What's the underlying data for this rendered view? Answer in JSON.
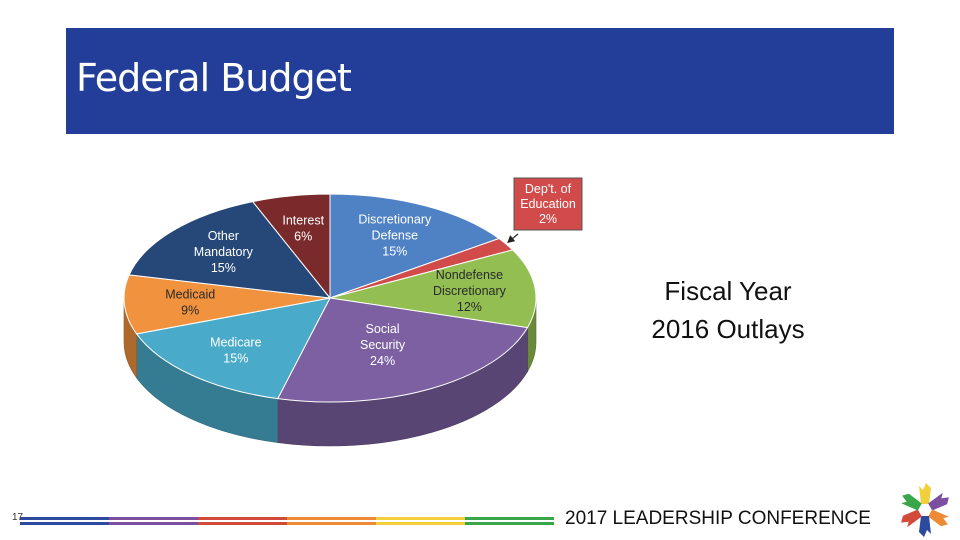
{
  "header": {
    "title": "Federal Budget"
  },
  "side_title": {
    "line1": "Fiscal Year",
    "line2": "2016 Outlays"
  },
  "footer": {
    "slide_number": "17",
    "conference": "2017 LEADERSHIP CONFERENCE",
    "stripe_colors": [
      "#2c4a9e",
      "#7b4ea0",
      "#d24a3a",
      "#ee8a33",
      "#f3cf3b",
      "#3aa64a"
    ]
  },
  "chart_data": {
    "type": "pie",
    "three_d": true,
    "title": "",
    "slices": [
      {
        "label": "Discretionary Defense",
        "value": 15,
        "value_label": "15%",
        "color": "#4f81c5"
      },
      {
        "label": "Dep't. of Education",
        "value": 2,
        "value_label": "2%",
        "color": "#d24b4b",
        "callout": true
      },
      {
        "label": "Nondefense Discretionary",
        "value": 12,
        "value_label": "12%",
        "color": "#93be52"
      },
      {
        "label": "Social Security",
        "value": 24,
        "value_label": "24%",
        "color": "#7c60a1"
      },
      {
        "label": "Medicare",
        "value": 15,
        "value_label": "15%",
        "color": "#49abc9"
      },
      {
        "label": "Medicaid",
        "value": 9,
        "value_label": "9%",
        "color": "#f1923e"
      },
      {
        "label": "Other Mandatory",
        "value": 15,
        "value_label": "15%",
        "color": "#254878"
      },
      {
        "label": "Interest",
        "value": 6,
        "value_label": "6%",
        "color": "#7b2a2c"
      }
    ]
  }
}
